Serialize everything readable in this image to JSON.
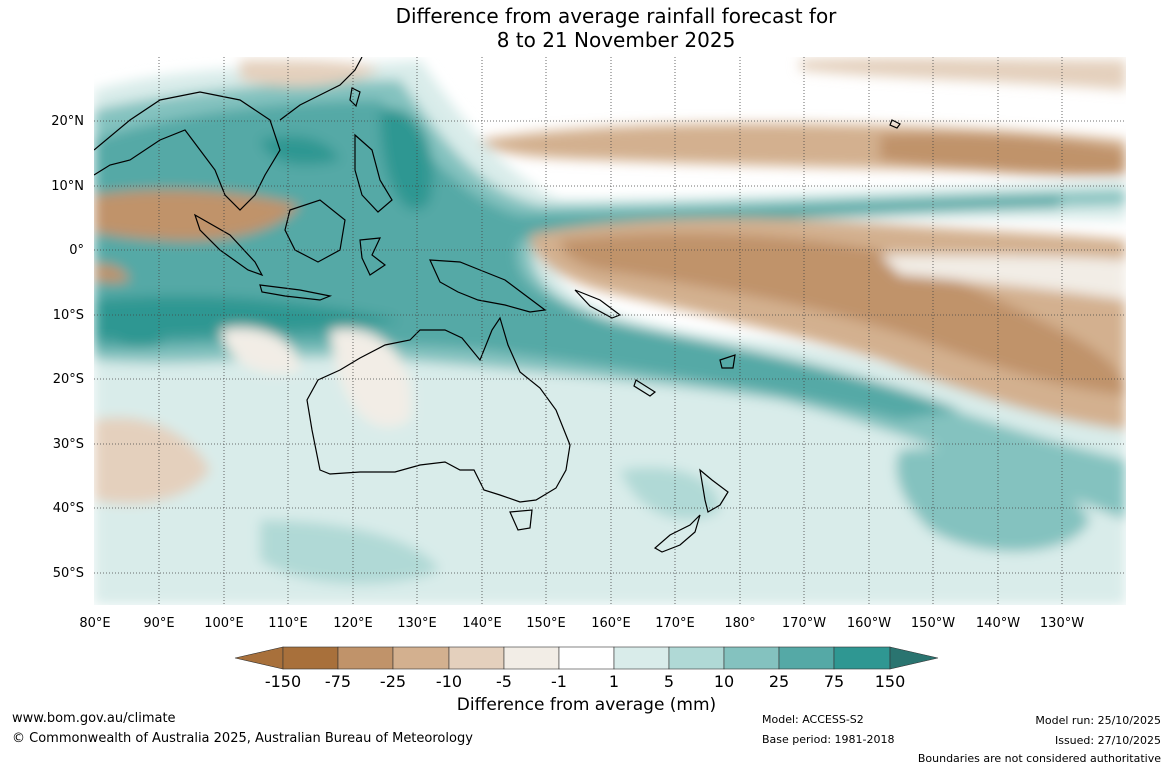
{
  "title": {
    "line1": "Difference from average rainfall forecast for",
    "line2": "8 to 21 November 2025"
  },
  "map": {
    "longitude_labels": [
      "80°E",
      "90°E",
      "100°E",
      "110°E",
      "120°E",
      "130°E",
      "140°E",
      "150°E",
      "160°E",
      "170°E",
      "180°",
      "170°W",
      "160°W",
      "150°W",
      "140°W",
      "130°W"
    ],
    "latitude_labels": [
      "20°N",
      "10°N",
      "0°",
      "10°S",
      "20°S",
      "30°S",
      "40°S",
      "50°S"
    ],
    "lon_range": [
      80,
      240
    ],
    "lat_range": [
      -55,
      30
    ]
  },
  "legend": {
    "title": "Difference from average (mm)",
    "tick_labels": [
      "-150",
      "-75",
      "-25",
      "-10",
      "-5",
      "-1",
      "1",
      "5",
      "10",
      "25",
      "75",
      "150"
    ],
    "colors": [
      "#a8703b",
      "#c0936a",
      "#d3b08f",
      "#e4d0bd",
      "#f2ede6",
      "#ffffff",
      "#d9ecea",
      "#b0d9d6",
      "#84c2bf",
      "#55a9a6",
      "#2f9792",
      "#2a7470"
    ],
    "units": "mm"
  },
  "footer": {
    "website": "www.bom.gov.au/climate",
    "copyright": "© Commonwealth of Australia 2025, Australian Bureau of Meteorology",
    "model": "Model: ACCESS-S2",
    "base_period": "Base period: 1981-2018",
    "model_run": "Model run: 25/10/2025",
    "issued": "Issued: 27/10/2025",
    "disclaimer": "Boundaries are not considered authoritative"
  }
}
